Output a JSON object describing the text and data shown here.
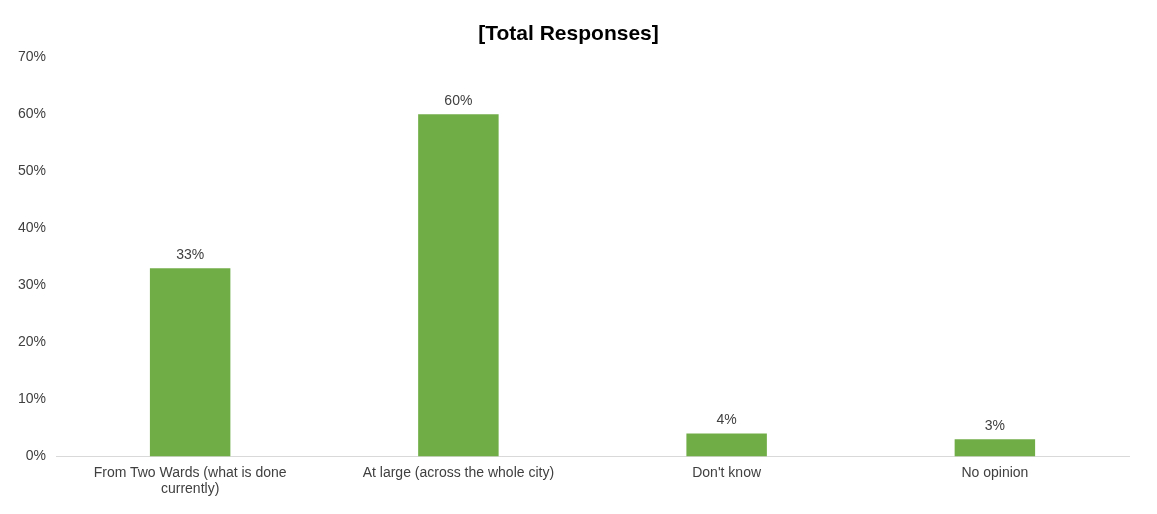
{
  "chart_data": {
    "type": "bar",
    "title": "[Total Responses]",
    "categories": [
      "From Two Wards (what is done currently)",
      "At large (across the whole city)",
      "Don't know",
      "No opinion"
    ],
    "values": [
      33,
      60,
      4,
      3
    ],
    "color": "#70ad47",
    "value_labels": [
      "33%",
      "60%",
      "4%",
      "3%"
    ],
    "ylim": [
      0,
      70
    ],
    "yticks": [
      {
        "value": 0,
        "label": "0%"
      },
      {
        "value": 10,
        "label": "10%"
      },
      {
        "value": 20,
        "label": "20%"
      },
      {
        "value": 30,
        "label": "30%"
      },
      {
        "value": 40,
        "label": "40%"
      },
      {
        "value": 50,
        "label": "50%"
      },
      {
        "value": 60,
        "label": "60%"
      },
      {
        "value": 70,
        "label": "70%"
      }
    ],
    "grid": false,
    "legend": false
  }
}
